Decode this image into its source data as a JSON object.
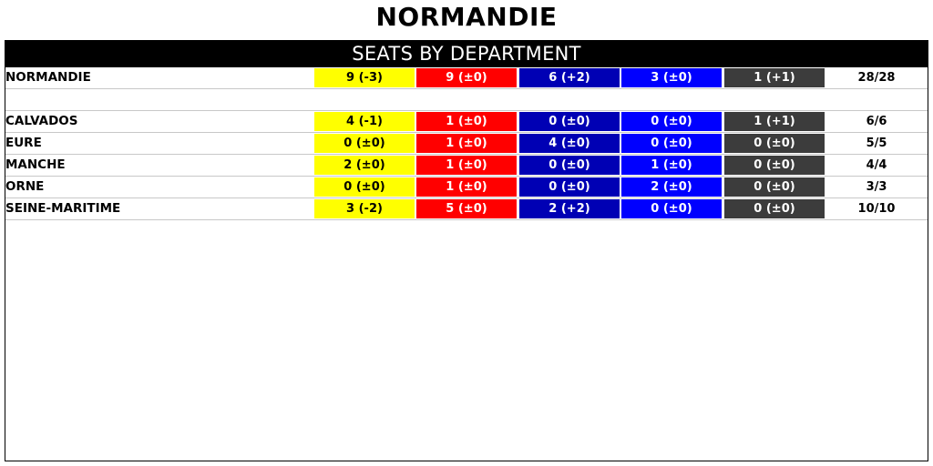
{
  "title": "NORMANDIE",
  "header": "SEATS BY DEPARTMENT",
  "colors": {
    "party1": "#ffff00",
    "party2": "#ff0000",
    "party3": "#0000b4",
    "party4": "#0000ff",
    "party5": "#3c3c3c"
  },
  "summary": {
    "name": "NORMANDIE",
    "cells": [
      "9 (-3)",
      "9 (±0)",
      "6 (+2)",
      "3 (±0)",
      "1 (+1)"
    ],
    "total": "28/28"
  },
  "departments": [
    {
      "name": "CALVADOS",
      "cells": [
        "4 (-1)",
        "1 (±0)",
        "0 (±0)",
        "0 (±0)",
        "1 (+1)"
      ],
      "total": "6/6"
    },
    {
      "name": "EURE",
      "cells": [
        "0 (±0)",
        "1 (±0)",
        "4 (±0)",
        "0 (±0)",
        "0 (±0)"
      ],
      "total": "5/5"
    },
    {
      "name": "MANCHE",
      "cells": [
        "2 (±0)",
        "1 (±0)",
        "0 (±0)",
        "1 (±0)",
        "0 (±0)"
      ],
      "total": "4/4"
    },
    {
      "name": "ORNE",
      "cells": [
        "0 (±0)",
        "1 (±0)",
        "0 (±0)",
        "2 (±0)",
        "0 (±0)"
      ],
      "total": "3/3"
    },
    {
      "name": "SEINE-MARITIME",
      "cells": [
        "3 (-2)",
        "5 (±0)",
        "2 (+2)",
        "0 (±0)",
        "0 (±0)"
      ],
      "total": "10/10"
    }
  ]
}
